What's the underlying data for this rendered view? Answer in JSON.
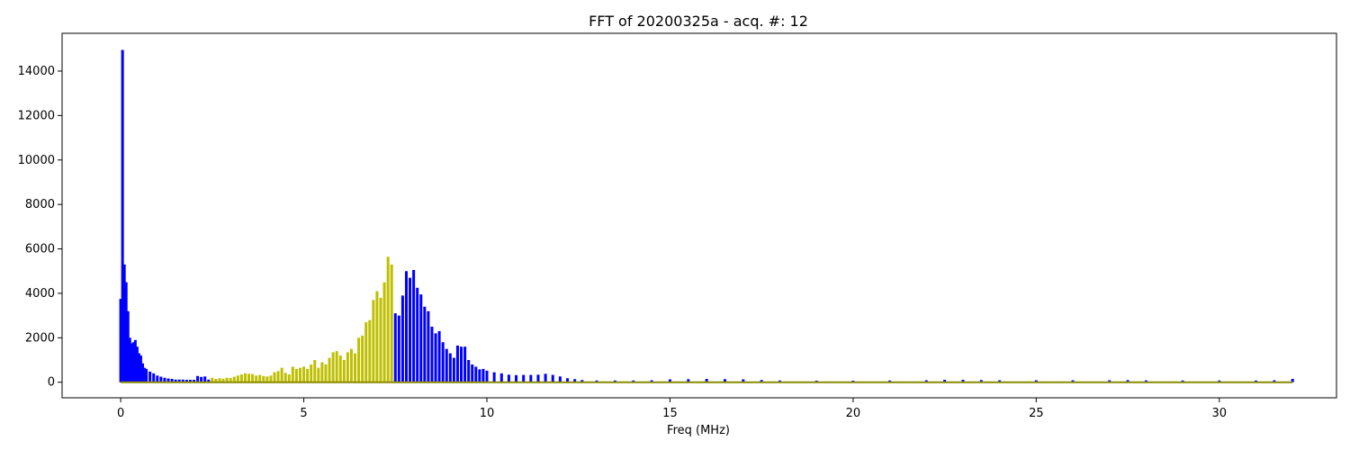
{
  "chart_data": {
    "type": "bar",
    "title": "FFT of 20200325a - acq. #: 12",
    "xlabel": "Freq (MHz)",
    "ylabel": "",
    "xlim": [
      -1.6,
      33.2
    ],
    "ylim": [
      -700,
      15700
    ],
    "xticks": [
      0,
      5,
      10,
      15,
      20,
      25,
      30
    ],
    "yticks": [
      0,
      2000,
      4000,
      6000,
      8000,
      10000,
      12000,
      14000
    ],
    "grid": false,
    "series": [
      {
        "color": "#0000ff",
        "x": [
          0.0,
          0.05,
          0.1,
          0.15,
          0.2,
          0.25,
          0.3,
          0.35,
          0.4,
          0.45,
          0.5,
          0.55,
          0.6,
          0.65,
          0.7,
          0.8,
          0.9,
          1.0,
          1.1,
          1.2,
          1.3,
          1.4,
          1.5,
          1.6,
          1.7,
          1.8,
          1.9,
          2.0,
          2.1,
          2.2,
          2.3,
          2.4,
          7.5,
          7.6,
          7.7,
          7.8,
          7.9,
          8.0,
          8.1,
          8.2,
          8.3,
          8.4,
          8.5,
          8.6,
          8.7,
          8.8,
          8.9,
          9.0,
          9.1,
          9.2,
          9.3,
          9.4,
          9.5,
          9.6,
          9.7,
          9.8,
          9.9,
          10.0,
          10.2,
          10.4,
          10.6,
          10.8,
          11.0,
          11.2,
          11.4,
          11.6,
          11.8,
          12.0,
          12.2,
          12.4,
          12.6,
          13.0,
          13.5,
          14.0,
          14.5,
          15.0,
          15.5,
          16.0,
          16.5,
          17.0,
          17.5,
          18.0,
          19.0,
          20.0,
          21.0,
          22.0,
          22.5,
          23.0,
          23.5,
          24.0,
          25.0,
          26.0,
          27.0,
          27.5,
          28.0,
          29.0,
          30.0,
          31.0,
          31.5,
          32.0
        ],
        "y": [
          3750,
          14950,
          5300,
          4500,
          3200,
          2000,
          1750,
          1800,
          1900,
          1600,
          1300,
          1200,
          850,
          650,
          600,
          480,
          400,
          300,
          250,
          200,
          170,
          150,
          120,
          120,
          120,
          110,
          110,
          110,
          280,
          240,
          260,
          120,
          3100,
          3000,
          3900,
          5000,
          4700,
          5050,
          4250,
          3950,
          3400,
          3200,
          2500,
          2200,
          2300,
          1800,
          1500,
          1300,
          1100,
          1650,
          1600,
          1600,
          1000,
          800,
          700,
          580,
          600,
          520,
          450,
          400,
          340,
          320,
          330,
          330,
          340,
          380,
          330,
          260,
          180,
          140,
          100,
          80,
          80,
          80,
          90,
          130,
          140,
          150,
          140,
          130,
          100,
          80,
          70,
          70,
          80,
          90,
          110,
          110,
          100,
          90,
          90,
          90,
          90,
          95,
          85,
          80,
          80,
          80,
          90,
          150
        ]
      },
      {
        "color": "#bfbf00",
        "x": [
          2.5,
          2.6,
          2.7,
          2.8,
          2.9,
          3.0,
          3.1,
          3.2,
          3.3,
          3.4,
          3.5,
          3.6,
          3.7,
          3.8,
          3.9,
          4.0,
          4.1,
          4.2,
          4.3,
          4.4,
          4.5,
          4.6,
          4.7,
          4.8,
          4.9,
          5.0,
          5.1,
          5.2,
          5.3,
          5.4,
          5.5,
          5.6,
          5.7,
          5.8,
          5.9,
          6.0,
          6.1,
          6.2,
          6.3,
          6.4,
          6.5,
          6.6,
          6.7,
          6.8,
          6.9,
          7.0,
          7.1,
          7.2,
          7.3,
          7.4
        ],
        "y": [
          200,
          150,
          180,
          160,
          200,
          190,
          250,
          300,
          350,
          400,
          380,
          370,
          300,
          330,
          280,
          260,
          300,
          450,
          500,
          650,
          420,
          350,
          700,
          600,
          650,
          700,
          600,
          800,
          1000,
          650,
          900,
          800,
          1100,
          1350,
          1400,
          1200,
          1000,
          1350,
          1500,
          1300,
          2000,
          2100,
          2700,
          2800,
          3700,
          4100,
          3800,
          4500,
          5650,
          5300
        ]
      }
    ]
  }
}
